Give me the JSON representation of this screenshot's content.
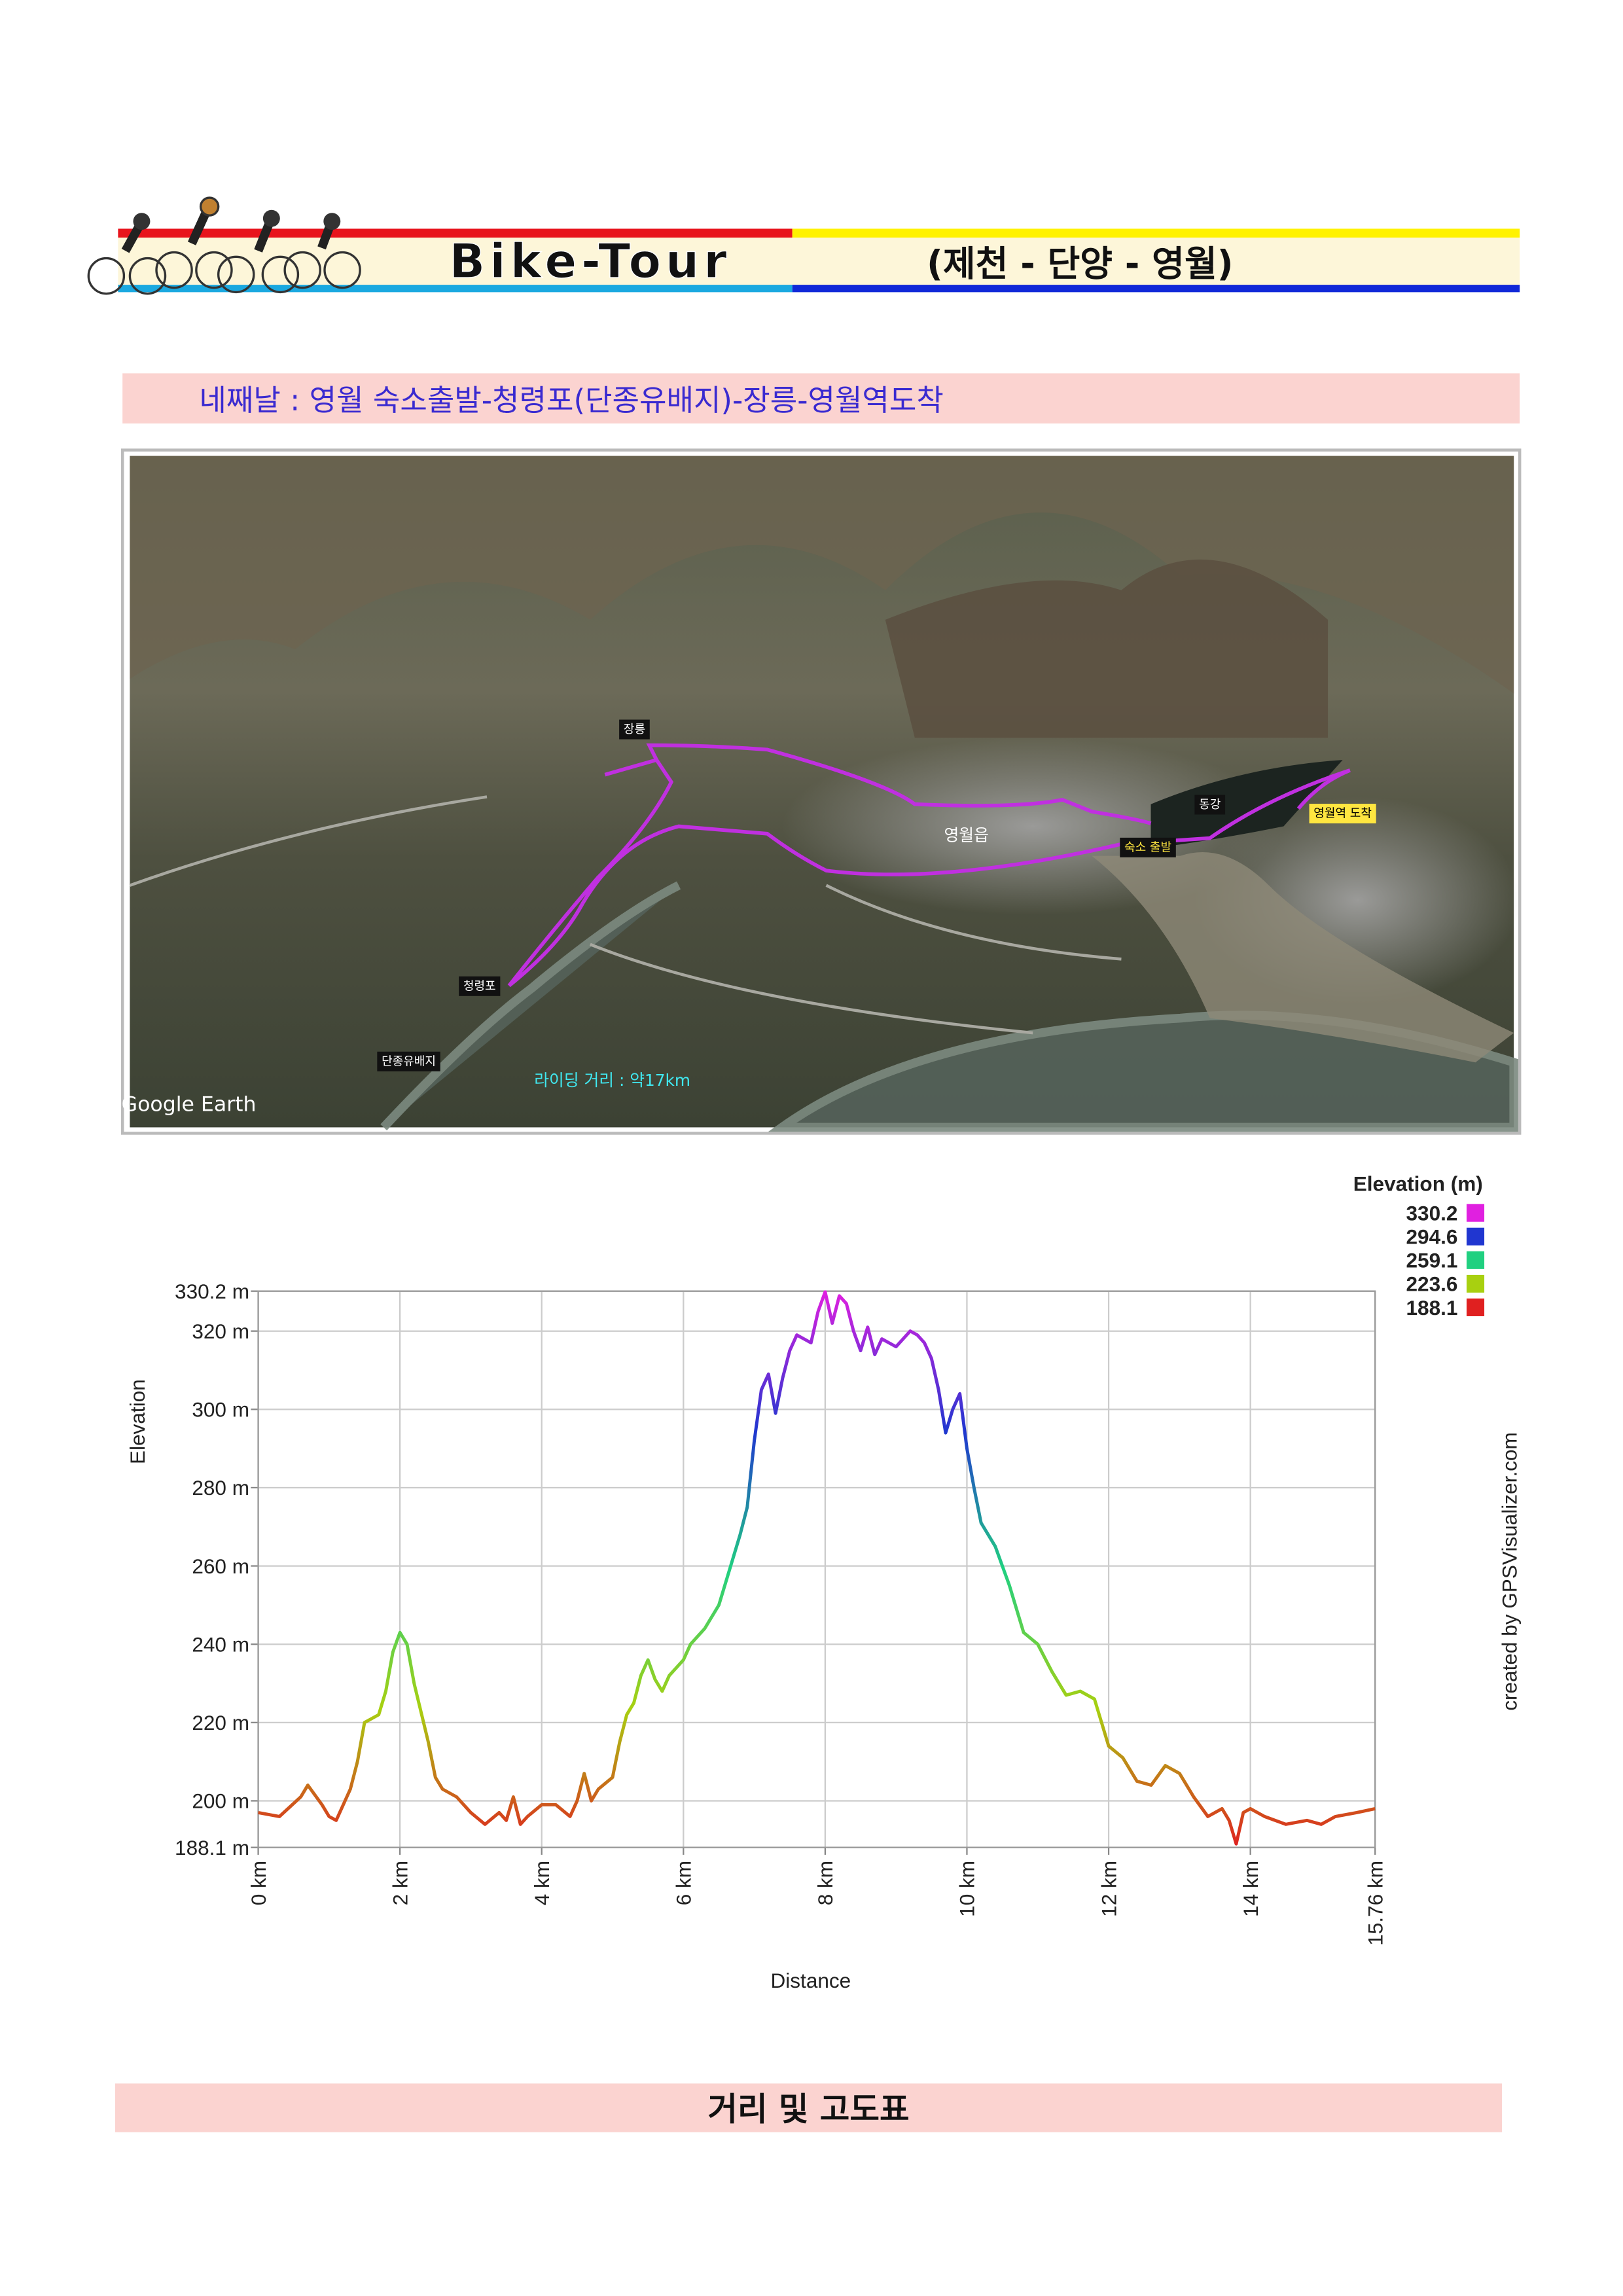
{
  "header": {
    "title": "Bike-Tour",
    "route": "(제천 - 단양 - 영월)"
  },
  "subtitle": "네째날 : 영월 숙소출발-청령포(단종유배지)-장릉-영월역도착",
  "map": {
    "labels": [
      "장릉",
      "영월읍",
      "동강",
      "영월역 도착",
      "숙소 출발",
      "청령포",
      "단종유배지",
      "라이딩 거리 : 약17km",
      "Google Earth"
    ]
  },
  "chart_data": {
    "type": "line",
    "x": [
      0,
      0.3,
      0.6,
      0.7,
      0.9,
      1.0,
      1.1,
      1.3,
      1.4,
      1.5,
      1.7,
      1.8,
      1.9,
      2.0,
      2.1,
      2.2,
      2.4,
      2.5,
      2.6,
      2.8,
      3.0,
      3.2,
      3.4,
      3.5,
      3.6,
      3.7,
      3.8,
      4.0,
      4.2,
      4.4,
      4.5,
      4.6,
      4.7,
      4.8,
      5.0,
      5.1,
      5.2,
      5.3,
      5.4,
      5.5,
      5.6,
      5.7,
      5.8,
      6.0,
      6.1,
      6.3,
      6.5,
      6.7,
      6.8,
      6.9,
      7.0,
      7.1,
      7.2,
      7.3,
      7.4,
      7.5,
      7.6,
      7.8,
      7.9,
      8.0,
      8.1,
      8.2,
      8.3,
      8.4,
      8.5,
      8.6,
      8.7,
      8.8,
      9.0,
      9.2,
      9.3,
      9.4,
      9.5,
      9.6,
      9.7,
      9.8,
      9.9,
      10.0,
      10.1,
      10.2,
      10.4,
      10.6,
      10.8,
      11.0,
      11.2,
      11.4,
      11.6,
      11.8,
      12.0,
      12.2,
      12.4,
      12.6,
      12.8,
      13.0,
      13.2,
      13.4,
      13.6,
      13.7,
      13.8,
      13.9,
      14.0,
      14.2,
      14.5,
      14.8,
      15.0,
      15.2,
      15.5,
      15.76
    ],
    "values": [
      197,
      196,
      201,
      204,
      199,
      196,
      195,
      203,
      210,
      220,
      222,
      228,
      238,
      243,
      240,
      230,
      215,
      206,
      203,
      201,
      197,
      194,
      197,
      195,
      201,
      194,
      196,
      199,
      199,
      196,
      200,
      207,
      200,
      203,
      206,
      215,
      222,
      225,
      232,
      236,
      231,
      228,
      232,
      236,
      240,
      244,
      250,
      262,
      268,
      275,
      292,
      305,
      309,
      299,
      308,
      315,
      319,
      317,
      325,
      330,
      322,
      329,
      327,
      320,
      315,
      321,
      314,
      318,
      316,
      320,
      319,
      317,
      313,
      305,
      294,
      300,
      304,
      290,
      280,
      271,
      265,
      255,
      243,
      240,
      233,
      227,
      228,
      226,
      214,
      211,
      205,
      204,
      209,
      207,
      201,
      196,
      198,
      195,
      189,
      197,
      198,
      196,
      194,
      195,
      194,
      196,
      197,
      198
    ],
    "x_label": "Distance",
    "y_label": "Elevation",
    "xlim": [
      0,
      15.76
    ],
    "ylim": [
      188.1,
      330.2
    ],
    "xticks": [
      {
        "value": 0,
        "label": "0 km"
      },
      {
        "value": 2,
        "label": "2 km"
      },
      {
        "value": 4,
        "label": "4 km"
      },
      {
        "value": 6,
        "label": "6 km"
      },
      {
        "value": 8,
        "label": "8 km"
      },
      {
        "value": 10,
        "label": "10 km"
      },
      {
        "value": 12,
        "label": "12 km"
      },
      {
        "value": 14,
        "label": "14 km"
      },
      {
        "value": 15.76,
        "label": "15.76 km"
      }
    ],
    "yticks": [
      {
        "value": 188.1,
        "label": "188.1 m"
      },
      {
        "value": 200,
        "label": "200 m"
      },
      {
        "value": 220,
        "label": "220 m"
      },
      {
        "value": 240,
        "label": "240 m"
      },
      {
        "value": 260,
        "label": "260 m"
      },
      {
        "value": 280,
        "label": "280 m"
      },
      {
        "value": 300,
        "label": "300 m"
      },
      {
        "value": 320,
        "label": "320 m"
      },
      {
        "value": 330.2,
        "label": "330.2 m"
      }
    ],
    "grid": true,
    "legend": {
      "title": "Elevation (m)",
      "items": [
        {
          "value": 330.2,
          "color": "#e020e0"
        },
        {
          "value": 294.6,
          "color": "#2036d0"
        },
        {
          "value": 259.1,
          "color": "#20d080"
        },
        {
          "value": 223.6,
          "color": "#a8d010"
        },
        {
          "value": 188.1,
          "color": "#e02020"
        }
      ]
    },
    "credit": "created by GPSVisualizer.com"
  },
  "footer": "거리 및 고도표"
}
